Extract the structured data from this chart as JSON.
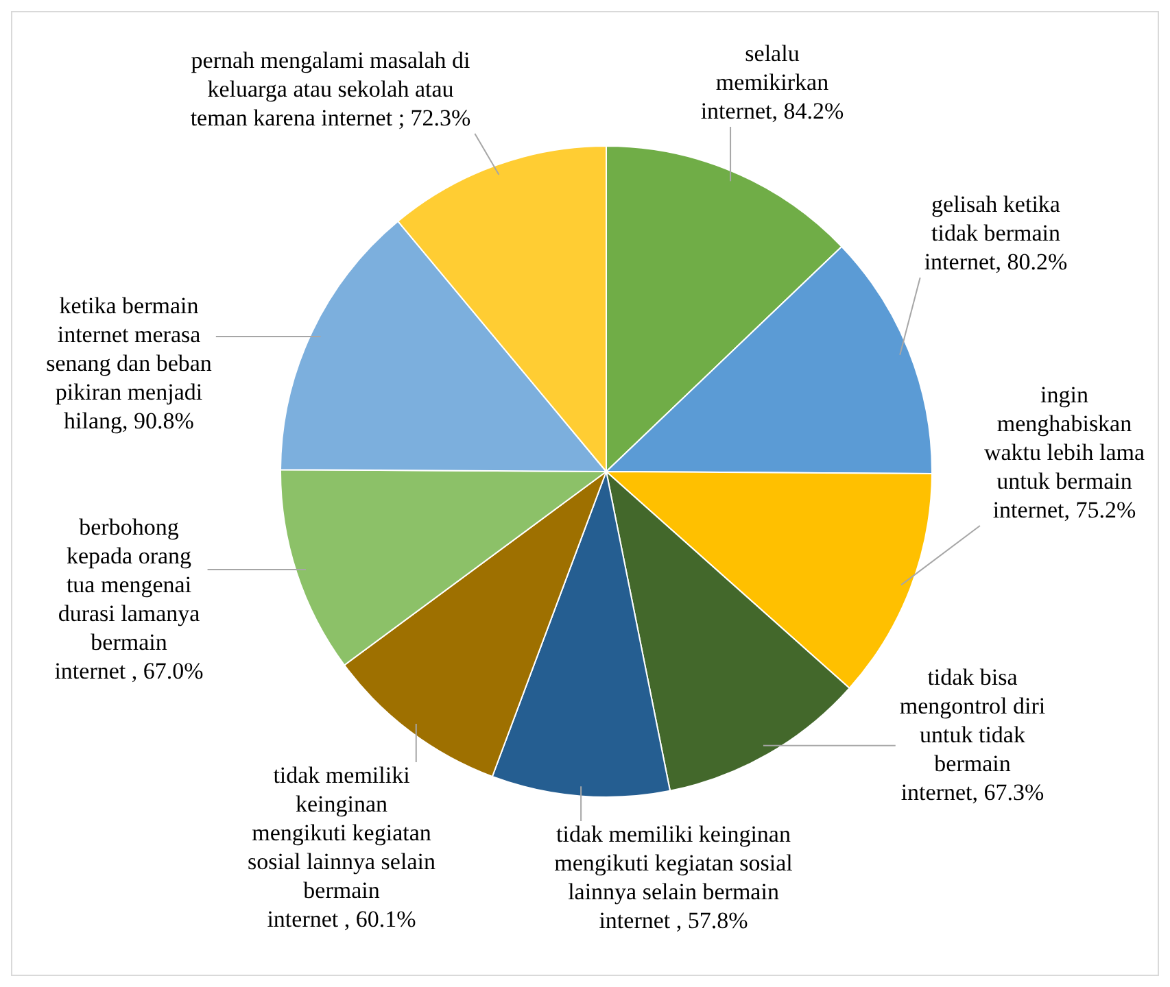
{
  "chart_data": {
    "type": "pie",
    "categories": [
      "selalu memikirkan internet",
      "gelisah ketika tidak bermain internet",
      "ingin menghabiskan waktu lebih lama untuk bermain internet",
      "tidak bisa mengontrol diri untuk tidak bermain internet",
      "tidak memiliki keinginan mengikuti kegiatan sosial lainnya selain bermain internet",
      "tidak memiliki keinginan mengikuti kegiatan sosial lainnya selain bermain internet",
      "berbohong kepada orang tua mengenai durasi lamanya bermain internet",
      "ketika bermain internet merasa senang dan beban pikiran menjadi hilang",
      "pernah mengalami masalah di keluarga atau sekolah atau teman karena internet"
    ],
    "values": [
      84.2,
      80.2,
      75.2,
      67.3,
      57.8,
      60.1,
      67.0,
      90.8,
      72.3
    ],
    "value_labels": [
      ", 84.2%",
      ", 80.2%",
      ", 75.2%",
      ", 67.3%",
      " , 57.8%",
      " , 60.1%",
      " , 67.0%",
      ", 90.8%",
      " ; 72.3%"
    ],
    "colors": [
      "#70ad47",
      "#5b9bd5",
      "#ffc000",
      "#43682b",
      "#255e91",
      "#9e7000",
      "#8cc168",
      "#7cafdd",
      "#ffcd33"
    ],
    "legend": false
  }
}
